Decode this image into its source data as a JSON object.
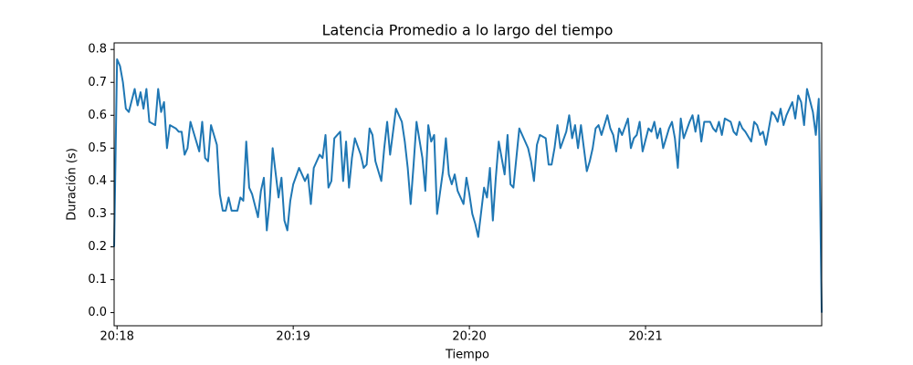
{
  "chart_data": {
    "type": "line",
    "title": "Latencia Promedio a lo largo del tiempo",
    "xlabel": "Tiempo",
    "ylabel": "Duración (s)",
    "x": [
      "20:17:59",
      "20:18:00",
      "20:18:01",
      "20:18:02",
      "20:18:03",
      "20:18:04",
      "20:18:06",
      "20:18:07",
      "20:18:08",
      "20:18:09",
      "20:18:10",
      "20:18:11",
      "20:18:13",
      "20:18:14",
      "20:18:15",
      "20:18:16",
      "20:18:17",
      "20:18:18",
      "20:18:20",
      "20:18:21",
      "20:18:22",
      "20:18:23",
      "20:18:24",
      "20:18:25",
      "20:18:27",
      "20:18:28",
      "20:18:29",
      "20:18:30",
      "20:18:31",
      "20:18:32",
      "20:18:34",
      "20:18:35",
      "20:18:36",
      "20:18:37",
      "20:18:38",
      "20:18:39",
      "20:18:41",
      "20:18:42",
      "20:18:43",
      "20:18:44",
      "20:18:45",
      "20:18:46",
      "20:18:48",
      "20:18:49",
      "20:18:50",
      "20:18:51",
      "20:18:52",
      "20:18:53",
      "20:18:55",
      "20:18:56",
      "20:18:57",
      "20:18:58",
      "20:18:59",
      "20:19:00",
      "20:19:02",
      "20:19:03",
      "20:19:04",
      "20:19:05",
      "20:19:06",
      "20:19:07",
      "20:19:09",
      "20:19:10",
      "20:19:11",
      "20:19:12",
      "20:19:13",
      "20:19:14",
      "20:19:16",
      "20:19:17",
      "20:19:18",
      "20:19:19",
      "20:19:20",
      "20:19:21",
      "20:19:23",
      "20:19:24",
      "20:19:25",
      "20:19:26",
      "20:19:27",
      "20:19:28",
      "20:19:30",
      "20:19:31",
      "20:19:32",
      "20:19:33",
      "20:19:34",
      "20:19:35",
      "20:19:37",
      "20:19:38",
      "20:19:39",
      "20:19:40",
      "20:19:41",
      "20:19:42",
      "20:19:44",
      "20:19:45",
      "20:19:46",
      "20:19:47",
      "20:19:48",
      "20:19:49",
      "20:19:51",
      "20:19:52",
      "20:19:53",
      "20:19:54",
      "20:19:55",
      "20:19:56",
      "20:19:58",
      "20:19:59",
      "20:20:00",
      "20:20:01",
      "20:20:02",
      "20:20:03",
      "20:20:05",
      "20:20:06",
      "20:20:07",
      "20:20:08",
      "20:20:09",
      "20:20:10",
      "20:20:12",
      "20:20:13",
      "20:20:14",
      "20:20:15",
      "20:20:16",
      "20:20:17",
      "20:20:19",
      "20:20:20",
      "20:20:21",
      "20:20:22",
      "20:20:23",
      "20:20:24",
      "20:20:26",
      "20:20:27",
      "20:20:28",
      "20:20:29",
      "20:20:30",
      "20:20:31",
      "20:20:33",
      "20:20:34",
      "20:20:35",
      "20:20:36",
      "20:20:37",
      "20:20:38",
      "20:20:40",
      "20:20:41",
      "20:20:42",
      "20:20:43",
      "20:20:44",
      "20:20:45",
      "20:20:47",
      "20:20:48",
      "20:20:49",
      "20:20:50",
      "20:20:51",
      "20:20:52",
      "20:20:54",
      "20:20:55",
      "20:20:56",
      "20:20:57",
      "20:20:58",
      "20:20:59",
      "20:21:01",
      "20:21:02",
      "20:21:03",
      "20:21:04",
      "20:21:05",
      "20:21:06",
      "20:21:08",
      "20:21:09",
      "20:21:10",
      "20:21:11",
      "20:21:12",
      "20:21:13",
      "20:21:15",
      "20:21:16",
      "20:21:17",
      "20:21:18",
      "20:21:19",
      "20:21:20",
      "20:21:22",
      "20:21:23",
      "20:21:24",
      "20:21:25",
      "20:21:26",
      "20:21:27",
      "20:21:29",
      "20:21:30",
      "20:21:31",
      "20:21:32",
      "20:21:33",
      "20:21:34",
      "20:21:36",
      "20:21:37",
      "20:21:38",
      "20:21:39",
      "20:21:40",
      "20:21:41",
      "20:21:43",
      "20:21:44",
      "20:21:45",
      "20:21:46",
      "20:21:47",
      "20:21:48",
      "20:21:50",
      "20:21:51",
      "20:21:52",
      "20:21:53",
      "20:21:54",
      "20:21:55",
      "20:21:57",
      "20:21:58",
      "20:21:59",
      "20:22:00"
    ],
    "values": [
      0.2,
      0.77,
      0.75,
      0.7,
      0.62,
      0.61,
      0.68,
      0.63,
      0.67,
      0.62,
      0.68,
      0.58,
      0.57,
      0.68,
      0.61,
      0.64,
      0.5,
      0.57,
      0.56,
      0.55,
      0.55,
      0.48,
      0.5,
      0.58,
      0.52,
      0.49,
      0.58,
      0.47,
      0.46,
      0.57,
      0.51,
      0.36,
      0.31,
      0.31,
      0.35,
      0.31,
      0.31,
      0.35,
      0.34,
      0.52,
      0.38,
      0.36,
      0.29,
      0.37,
      0.41,
      0.25,
      0.34,
      0.5,
      0.35,
      0.41,
      0.28,
      0.25,
      0.34,
      0.39,
      0.44,
      0.42,
      0.4,
      0.42,
      0.33,
      0.44,
      0.48,
      0.47,
      0.54,
      0.38,
      0.4,
      0.53,
      0.55,
      0.4,
      0.52,
      0.38,
      0.47,
      0.53,
      0.48,
      0.44,
      0.45,
      0.56,
      0.54,
      0.46,
      0.4,
      0.5,
      0.58,
      0.48,
      0.55,
      0.62,
      0.58,
      0.52,
      0.44,
      0.33,
      0.45,
      0.58,
      0.47,
      0.37,
      0.57,
      0.52,
      0.54,
      0.3,
      0.43,
      0.53,
      0.42,
      0.39,
      0.42,
      0.37,
      0.33,
      0.41,
      0.36,
      0.3,
      0.27,
      0.23,
      0.38,
      0.35,
      0.44,
      0.28,
      0.41,
      0.52,
      0.42,
      0.54,
      0.39,
      0.38,
      0.47,
      0.56,
      0.52,
      0.5,
      0.46,
      0.4,
      0.51,
      0.54,
      0.53,
      0.45,
      0.45,
      0.5,
      0.57,
      0.5,
      0.55,
      0.6,
      0.53,
      0.57,
      0.5,
      0.57,
      0.43,
      0.46,
      0.5,
      0.56,
      0.57,
      0.54,
      0.6,
      0.56,
      0.54,
      0.49,
      0.56,
      0.54,
      0.59,
      0.5,
      0.53,
      0.54,
      0.58,
      0.49,
      0.56,
      0.55,
      0.58,
      0.53,
      0.56,
      0.5,
      0.56,
      0.58,
      0.53,
      0.44,
      0.59,
      0.53,
      0.58,
      0.6,
      0.55,
      0.6,
      0.52,
      0.58,
      0.58,
      0.56,
      0.55,
      0.58,
      0.54,
      0.59,
      0.58,
      0.55,
      0.54,
      0.58,
      0.56,
      0.55,
      0.52,
      0.58,
      0.57,
      0.54,
      0.55,
      0.51,
      0.61,
      0.6,
      0.58,
      0.62,
      0.57,
      0.6,
      0.64,
      0.59,
      0.66,
      0.64,
      0.57,
      0.68,
      0.61,
      0.54,
      0.65,
      0.0
    ],
    "color": "#1f77b4",
    "xlim": [
      "20:17:59",
      "20:22:00"
    ],
    "xticks": [
      "20:18",
      "20:19",
      "20:20",
      "20:21"
    ],
    "ylim": [
      -0.04,
      0.82
    ],
    "yticks": [
      {
        "value": 0,
        "label": "0.0"
      },
      0.1,
      0.2,
      0.3,
      0.4,
      0.5,
      0.6,
      0.7,
      0.8
    ]
  }
}
